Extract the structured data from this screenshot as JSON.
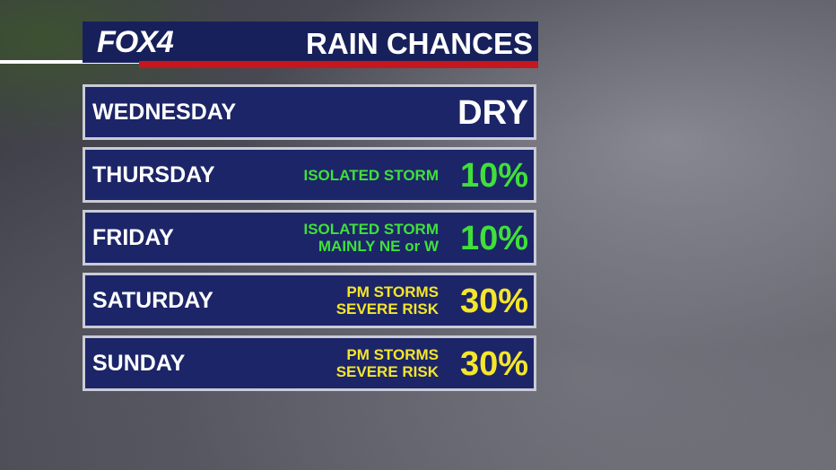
{
  "header": {
    "logo": "FOX4",
    "title": "RAIN CHANCES"
  },
  "rows": [
    {
      "day": "WEDNESDAY",
      "note": [],
      "chance": "DRY",
      "color": "#ffffff"
    },
    {
      "day": "THURSDAY",
      "note": [
        "ISOLATED STORM"
      ],
      "chance": "10%",
      "color": "#3fe03a"
    },
    {
      "day": "FRIDAY",
      "note": [
        "ISOLATED STORM",
        "MAINLY NE or W"
      ],
      "chance": "10%",
      "color": "#3fe03a"
    },
    {
      "day": "SATURDAY",
      "note": [
        "PM STORMS",
        "SEVERE RISK"
      ],
      "chance": "30%",
      "color": "#f5e62a"
    },
    {
      "day": "SUNDAY",
      "note": [
        "PM STORMS",
        "SEVERE RISK"
      ],
      "chance": "30%",
      "color": "#f5e62a"
    }
  ]
}
